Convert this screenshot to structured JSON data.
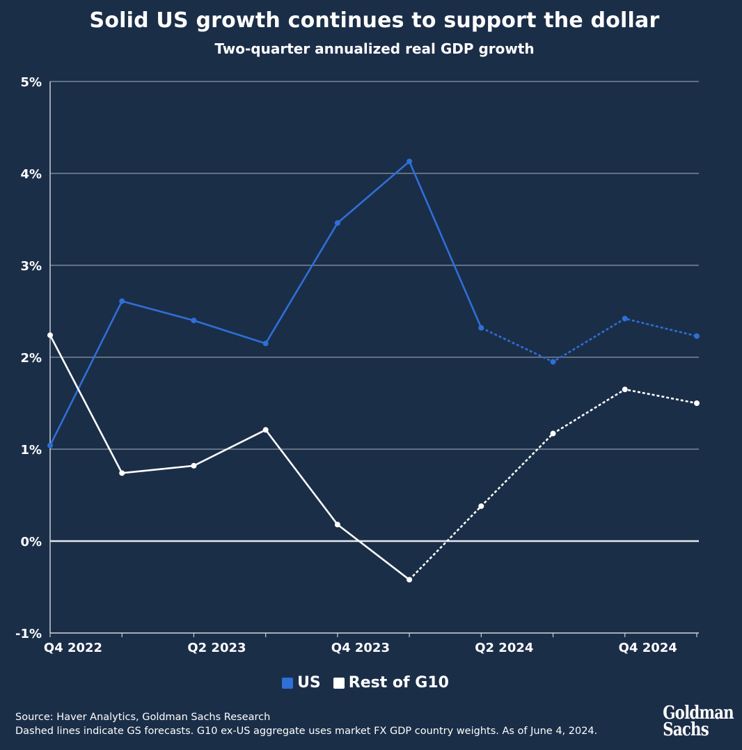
{
  "header": {
    "title": "Solid US growth continues to support the dollar",
    "subtitle": "Two-quarter annualized real GDP growth"
  },
  "chart_data": {
    "type": "line",
    "title": "Solid US growth continues to support the dollar",
    "subtitle": "Two-quarter annualized real GDP growth",
    "xlabel": "",
    "ylabel": "",
    "categories": [
      "Q4 2022",
      "Q1 2023",
      "Q2 2023",
      "Q3 2023",
      "Q4 2023",
      "Q1 2024",
      "Q2 2024",
      "Q3 2024",
      "Q4 2024",
      "Q1 2025"
    ],
    "x_tick_labels": [
      {
        "index": 0,
        "label": "Q4 2022"
      },
      {
        "index": 2,
        "label": "Q2 2023"
      },
      {
        "index": 4,
        "label": "Q4 2023"
      },
      {
        "index": 6,
        "label": "Q2 2024"
      },
      {
        "index": 8,
        "label": "Q4 2024"
      }
    ],
    "y_ticks": [
      -1,
      0,
      1,
      2,
      3,
      4,
      5
    ],
    "y_tick_labels": [
      "-1%",
      "0%",
      "1%",
      "2%",
      "3%",
      "4%",
      "5%"
    ],
    "ylim": [
      -1,
      5
    ],
    "grid": true,
    "legend_position": "bottom-center",
    "series": [
      {
        "name": "US",
        "color": "#2f6fd6",
        "values": [
          1.04,
          2.61,
          2.4,
          2.15,
          3.46,
          4.13,
          2.32,
          1.95,
          2.42,
          2.23
        ],
        "forecast_from_index": 6
      },
      {
        "name": "Rest of G10",
        "color": "#ffffff",
        "values": [
          2.24,
          0.74,
          0.82,
          1.21,
          0.18,
          -0.42,
          0.38,
          1.17,
          1.65,
          1.5
        ],
        "forecast_from_index": 5
      }
    ]
  },
  "footer": {
    "source": "Source: Haver Analytics, Goldman Sachs Research",
    "note": "Dashed lines indicate GS forecasts. G10 ex-US aggregate uses market FX GDP country weights. As of June 4, 2024."
  },
  "logo": {
    "line1": "Goldman",
    "line2": "Sachs"
  }
}
